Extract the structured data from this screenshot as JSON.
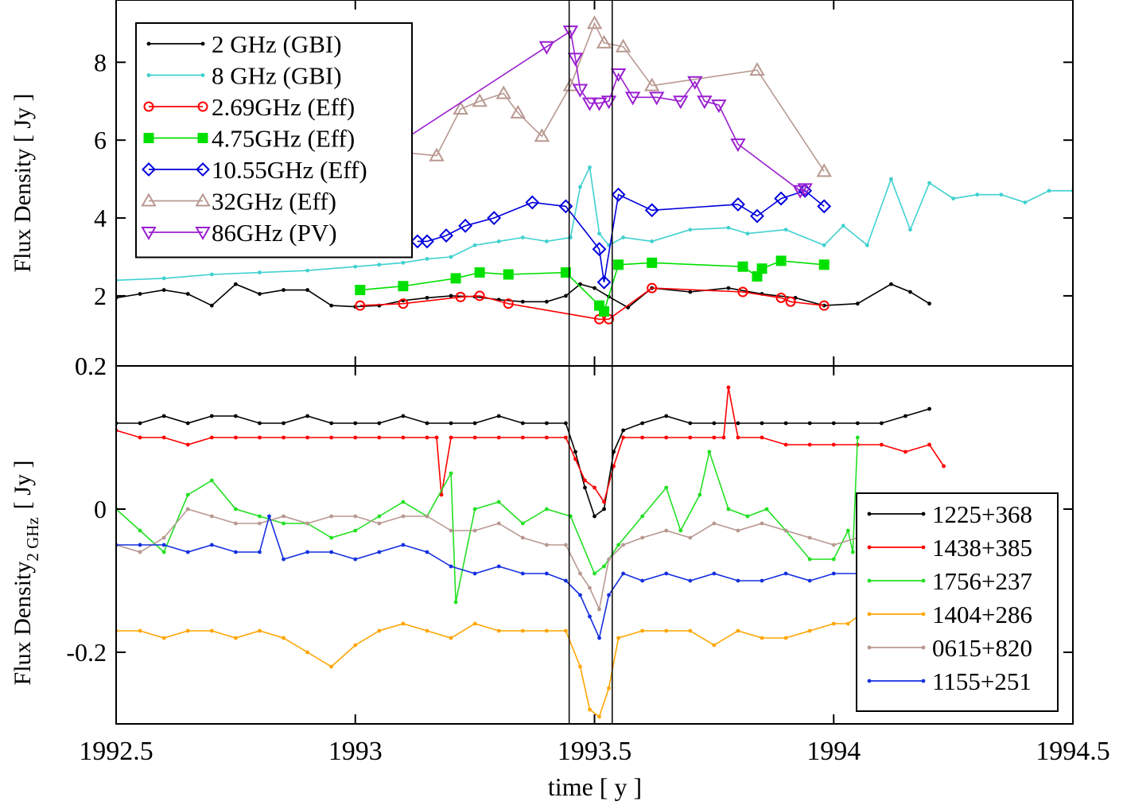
{
  "x_axis": {
    "label": "time [ y ]",
    "ticks": [
      "1992.5",
      "1993",
      "1993.5",
      "1994",
      "1994.5"
    ],
    "range": [
      1992.5,
      1994.5
    ]
  },
  "markers": [
    1993.447,
    1993.537
  ],
  "chart_data": [
    {
      "type": "line",
      "panel": "top",
      "ylabel": "Flux Density [ Jy ]",
      "ylim": [
        0.2,
        9.6
      ],
      "yticks": [
        "0.2",
        "2",
        "4",
        "6",
        "8"
      ],
      "legend_position": "top-left",
      "series": [
        {
          "name": "2 GHz (GBI)",
          "color": "#000000",
          "marker": "dot",
          "x": [
            1992.5,
            1992.55,
            1992.6,
            1992.65,
            1992.7,
            1992.75,
            1992.8,
            1992.85,
            1992.9,
            1992.95,
            1993.0,
            1993.05,
            1993.1,
            1993.15,
            1993.2,
            1993.25,
            1993.3,
            1993.35,
            1993.4,
            1993.44,
            1993.47,
            1993.5,
            1993.53,
            1993.57,
            1993.62,
            1993.7,
            1993.78,
            1993.85,
            1993.92,
            1993.98,
            1994.05,
            1994.12,
            1994.16,
            1994.2
          ],
          "y": [
            1.95,
            2.05,
            2.15,
            2.05,
            1.75,
            2.3,
            2.05,
            2.15,
            2.15,
            1.75,
            1.72,
            1.75,
            1.88,
            1.95,
            2.0,
            1.98,
            1.9,
            1.85,
            1.85,
            2.0,
            2.3,
            2.2,
            1.98,
            1.7,
            2.2,
            2.1,
            2.2,
            2.05,
            1.95,
            1.75,
            1.8,
            2.3,
            2.1,
            1.8
          ]
        },
        {
          "name": "8 GHz (GBI)",
          "color": "#40D0D0",
          "marker": "dot",
          "x": [
            1992.5,
            1992.6,
            1992.7,
            1992.8,
            1992.9,
            1993.0,
            1993.05,
            1993.1,
            1993.15,
            1993.2,
            1993.25,
            1993.3,
            1993.35,
            1993.4,
            1993.45,
            1993.47,
            1993.49,
            1993.51,
            1993.53,
            1993.56,
            1993.62,
            1993.7,
            1993.78,
            1993.82,
            1993.9,
            1993.98,
            1994.02,
            1994.07,
            1994.12,
            1994.16,
            1994.2,
            1994.25,
            1994.3,
            1994.35,
            1994.4,
            1994.45,
            1994.5
          ],
          "y": [
            2.4,
            2.45,
            2.55,
            2.6,
            2.65,
            2.75,
            2.8,
            2.85,
            2.95,
            3.0,
            3.3,
            3.4,
            3.5,
            3.4,
            3.5,
            4.8,
            5.3,
            3.6,
            3.3,
            3.5,
            3.4,
            3.7,
            3.75,
            3.6,
            3.7,
            3.3,
            3.8,
            3.3,
            5.0,
            3.7,
            4.9,
            4.5,
            4.6,
            4.6,
            4.4,
            4.7,
            4.7
          ]
        },
        {
          "name": "2.69GHz (Eff)",
          "color": "#FF0000",
          "marker": "circle-open",
          "x": [
            1993.01,
            1993.1,
            1993.22,
            1993.26,
            1993.32,
            1993.51,
            1993.53,
            1993.62,
            1993.81,
            1993.89,
            1993.91,
            1993.98
          ],
          "y": [
            1.75,
            1.8,
            1.97,
            2.0,
            1.8,
            1.4,
            1.4,
            2.2,
            2.1,
            1.95,
            1.85,
            1.75
          ]
        },
        {
          "name": "4.75GHz (Eff)",
          "color": "#00E000",
          "marker": "square-filled",
          "x": [
            1993.01,
            1993.1,
            1993.21,
            1993.26,
            1993.32,
            1993.44,
            1993.51,
            1993.52,
            1993.55,
            1993.62,
            1993.81,
            1993.84,
            1993.85,
            1993.89,
            1993.98
          ],
          "y": [
            2.15,
            2.25,
            2.45,
            2.6,
            2.55,
            2.6,
            1.75,
            1.6,
            2.8,
            2.85,
            2.75,
            2.5,
            2.7,
            2.9,
            2.8
          ]
        },
        {
          "name": "10.55GHz (Eff)",
          "color": "#0000DD",
          "marker": "diamond-open",
          "x": [
            1993.13,
            1993.15,
            1993.19,
            1993.23,
            1993.29,
            1993.37,
            1993.44,
            1993.51,
            1993.52,
            1993.55,
            1993.62,
            1993.8,
            1993.84,
            1993.89,
            1993.94,
            1993.98
          ],
          "y": [
            3.4,
            3.4,
            3.55,
            3.8,
            4.0,
            4.4,
            4.3,
            3.2,
            2.35,
            4.6,
            4.2,
            4.35,
            4.05,
            4.5,
            4.7,
            4.3
          ]
        },
        {
          "name": "32GHz (Eff)",
          "color": "#B89890",
          "marker": "triangle-up-open",
          "x": [
            1993.0,
            1993.17,
            1993.22,
            1993.26,
            1993.31,
            1993.34,
            1993.39,
            1993.45,
            1993.5,
            1993.52,
            1993.56,
            1993.62,
            1993.84,
            1993.98
          ],
          "y": [
            5.8,
            5.6,
            6.8,
            7.0,
            7.2,
            6.7,
            6.1,
            7.4,
            9.0,
            8.5,
            8.4,
            7.4,
            7.8,
            5.2
          ]
        },
        {
          "name": "86GHz (PV)",
          "color": "#9A1FD0",
          "marker": "triangle-down-open",
          "x": [
            1993.0,
            1993.4,
            1993.45,
            1993.46,
            1993.47,
            1993.49,
            1993.51,
            1993.53,
            1993.55,
            1993.58,
            1993.63,
            1993.68,
            1993.71,
            1993.73,
            1993.76,
            1993.8,
            1993.93,
            1993.94
          ],
          "y": [
            5.2,
            8.4,
            8.8,
            8.1,
            7.3,
            6.95,
            6.95,
            7.0,
            7.7,
            7.1,
            7.1,
            7.0,
            7.5,
            7.0,
            6.9,
            5.9,
            4.7,
            4.75
          ]
        }
      ]
    },
    {
      "type": "line",
      "panel": "bottom",
      "ylabel": "Flux Density",
      "ylabel_sub": "2 GHz",
      "ylabel_unit": "[ Jy ]",
      "ylim": [
        -0.3,
        0.2
      ],
      "yticks": [
        "-0.2",
        "0",
        "0.2"
      ],
      "legend_position": "bottom-right",
      "series": [
        {
          "name": "1225+368",
          "color": "#000000",
          "x": [
            1992.5,
            1992.55,
            1992.6,
            1992.65,
            1992.7,
            1992.75,
            1992.8,
            1992.85,
            1992.9,
            1992.95,
            1993.0,
            1993.05,
            1993.1,
            1993.15,
            1993.2,
            1993.25,
            1993.3,
            1993.35,
            1993.4,
            1993.44,
            1993.46,
            1993.48,
            1993.5,
            1993.52,
            1993.54,
            1993.56,
            1993.6,
            1993.65,
            1993.7,
            1993.75,
            1993.8,
            1993.85,
            1993.9,
            1993.95,
            1994.0,
            1994.05,
            1994.1,
            1994.15,
            1994.2
          ],
          "y": [
            0.12,
            0.12,
            0.13,
            0.12,
            0.13,
            0.13,
            0.12,
            0.12,
            0.13,
            0.12,
            0.12,
            0.12,
            0.13,
            0.12,
            0.12,
            0.12,
            0.13,
            0.12,
            0.12,
            0.12,
            0.08,
            0.03,
            -0.01,
            0.0,
            0.08,
            0.11,
            0.12,
            0.13,
            0.12,
            0.12,
            0.12,
            0.12,
            0.12,
            0.12,
            0.12,
            0.12,
            0.12,
            0.13,
            0.14
          ]
        },
        {
          "name": "1438+385",
          "color": "#FF0000",
          "x": [
            1992.5,
            1992.55,
            1992.6,
            1992.65,
            1992.7,
            1992.75,
            1992.8,
            1992.85,
            1992.9,
            1992.95,
            1993.0,
            1993.05,
            1993.1,
            1993.15,
            1993.17,
            1993.18,
            1993.2,
            1993.25,
            1993.3,
            1993.35,
            1993.4,
            1993.44,
            1993.46,
            1993.48,
            1993.5,
            1993.52,
            1993.54,
            1993.56,
            1993.6,
            1993.65,
            1993.7,
            1993.75,
            1993.77,
            1993.78,
            1993.8,
            1993.85,
            1993.9,
            1993.95,
            1994.0,
            1994.05,
            1994.1,
            1994.15,
            1994.2,
            1994.23
          ],
          "y": [
            0.11,
            0.1,
            0.1,
            0.09,
            0.1,
            0.1,
            0.1,
            0.1,
            0.1,
            0.1,
            0.1,
            0.1,
            0.1,
            0.1,
            0.1,
            0.02,
            0.1,
            0.1,
            0.1,
            0.1,
            0.1,
            0.1,
            0.07,
            0.04,
            0.03,
            0.01,
            0.06,
            0.1,
            0.1,
            0.1,
            0.1,
            0.1,
            0.1,
            0.17,
            0.1,
            0.1,
            0.09,
            0.09,
            0.09,
            0.09,
            0.09,
            0.08,
            0.09,
            0.06
          ]
        },
        {
          "name": "1756+237",
          "color": "#22E022",
          "x": [
            1992.5,
            1992.55,
            1992.6,
            1992.65,
            1992.7,
            1992.75,
            1992.8,
            1992.85,
            1992.9,
            1992.95,
            1993.0,
            1993.05,
            1993.1,
            1993.15,
            1993.2,
            1993.21,
            1993.25,
            1993.3,
            1993.35,
            1993.4,
            1993.45,
            1993.5,
            1993.52,
            1993.55,
            1993.6,
            1993.65,
            1993.68,
            1993.72,
            1993.74,
            1993.78,
            1993.82,
            1993.86,
            1993.9,
            1993.95,
            1994.0,
            1994.03,
            1994.04,
            1994.05
          ],
          "y": [
            0.0,
            -0.03,
            -0.06,
            0.02,
            0.04,
            0.0,
            -0.01,
            -0.02,
            -0.02,
            -0.04,
            -0.03,
            -0.01,
            0.01,
            -0.01,
            0.05,
            -0.13,
            0.0,
            0.01,
            -0.02,
            0.0,
            -0.01,
            -0.09,
            -0.08,
            -0.05,
            -0.01,
            0.03,
            -0.03,
            0.02,
            0.08,
            0.0,
            -0.01,
            0.0,
            -0.03,
            -0.07,
            -0.07,
            -0.03,
            -0.06,
            0.1
          ]
        },
        {
          "name": "1404+286",
          "color": "#FFA500",
          "x": [
            1992.5,
            1992.55,
            1992.6,
            1992.65,
            1992.7,
            1992.75,
            1992.8,
            1992.85,
            1992.9,
            1992.95,
            1993.0,
            1993.05,
            1993.1,
            1993.15,
            1993.2,
            1993.25,
            1993.3,
            1993.35,
            1993.4,
            1993.44,
            1993.47,
            1993.49,
            1993.51,
            1993.53,
            1993.55,
            1993.6,
            1993.65,
            1993.7,
            1993.75,
            1993.8,
            1993.85,
            1993.9,
            1993.95,
            1994.0,
            1994.03,
            1994.05
          ],
          "y": [
            -0.17,
            -0.17,
            -0.18,
            -0.17,
            -0.17,
            -0.18,
            -0.17,
            -0.18,
            -0.2,
            -0.22,
            -0.19,
            -0.17,
            -0.16,
            -0.17,
            -0.18,
            -0.16,
            -0.17,
            -0.17,
            -0.17,
            -0.17,
            -0.22,
            -0.28,
            -0.29,
            -0.25,
            -0.18,
            -0.17,
            -0.17,
            -0.17,
            -0.19,
            -0.17,
            -0.18,
            -0.18,
            -0.17,
            -0.16,
            -0.16,
            -0.15
          ]
        },
        {
          "name": "0615+820",
          "color": "#B89890",
          "x": [
            1992.5,
            1992.55,
            1992.6,
            1992.65,
            1992.7,
            1992.75,
            1992.8,
            1992.85,
            1992.9,
            1992.95,
            1993.0,
            1993.05,
            1993.1,
            1993.15,
            1993.2,
            1993.25,
            1993.3,
            1993.35,
            1993.4,
            1993.44,
            1993.47,
            1993.49,
            1993.51,
            1993.53,
            1993.56,
            1993.6,
            1993.65,
            1993.7,
            1993.75,
            1993.8,
            1993.85,
            1993.9,
            1993.95,
            1994.0,
            1994.05
          ],
          "y": [
            -0.05,
            -0.06,
            -0.04,
            0.0,
            -0.01,
            -0.02,
            -0.02,
            -0.01,
            -0.02,
            -0.01,
            -0.01,
            -0.02,
            -0.01,
            -0.01,
            -0.03,
            -0.03,
            -0.02,
            -0.04,
            -0.05,
            -0.05,
            -0.09,
            -0.11,
            -0.14,
            -0.07,
            -0.05,
            -0.04,
            -0.03,
            -0.04,
            -0.02,
            -0.03,
            -0.02,
            -0.03,
            -0.04,
            -0.05,
            -0.04
          ]
        },
        {
          "name": "1155+251",
          "color": "#1530E0",
          "x": [
            1992.5,
            1992.55,
            1992.6,
            1992.65,
            1992.7,
            1992.75,
            1992.8,
            1992.82,
            1992.85,
            1992.9,
            1992.95,
            1993.0,
            1993.05,
            1993.1,
            1993.15,
            1993.2,
            1993.25,
            1993.3,
            1993.35,
            1993.4,
            1993.44,
            1993.47,
            1993.49,
            1993.51,
            1993.53,
            1993.56,
            1993.6,
            1993.65,
            1993.7,
            1993.75,
            1993.8,
            1993.85,
            1993.9,
            1993.95,
            1994.0,
            1994.05
          ],
          "y": [
            -0.05,
            -0.05,
            -0.05,
            -0.06,
            -0.05,
            -0.06,
            -0.06,
            -0.01,
            -0.07,
            -0.06,
            -0.06,
            -0.07,
            -0.06,
            -0.05,
            -0.06,
            -0.08,
            -0.09,
            -0.08,
            -0.09,
            -0.09,
            -0.1,
            -0.12,
            -0.15,
            -0.18,
            -0.12,
            -0.09,
            -0.1,
            -0.09,
            -0.1,
            -0.09,
            -0.1,
            -0.1,
            -0.09,
            -0.1,
            -0.09,
            -0.09
          ]
        }
      ]
    }
  ]
}
